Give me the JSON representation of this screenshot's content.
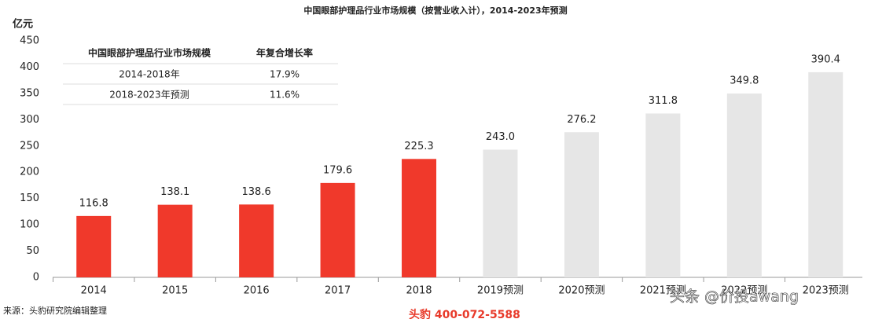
{
  "chart_data": {
    "type": "bar",
    "title": "中国眼部护理品行业市场规模（按营业收入计），2014-2023年预测",
    "y_label": "亿元",
    "categories": [
      "2014",
      "2015",
      "2016",
      "2017",
      "2018",
      "2019预测",
      "2020预测",
      "2021预测",
      "2022预测",
      "2023预测"
    ],
    "values": [
      116.8,
      138.1,
      138.6,
      179.6,
      225.3,
      243.0,
      276.2,
      311.8,
      349.8,
      390.4
    ],
    "value_labels": [
      "116.8",
      "138.1",
      "138.6",
      "179.6",
      "225.3",
      "243.0",
      "276.2",
      "311.8",
      "349.8",
      "390.4"
    ],
    "colors": [
      "#f0392b",
      "#f0392b",
      "#f0392b",
      "#f0392b",
      "#f0392b",
      "#e6e6e6",
      "#e6e6e6",
      "#e6e6e6",
      "#e6e6e6",
      "#e6e6e6"
    ],
    "ylim": [
      0,
      450
    ],
    "yticks": [
      0,
      50,
      100,
      150,
      200,
      250,
      300,
      350,
      400,
      450
    ],
    "grid": false,
    "inset_table": {
      "header": [
        "中国眼部护理品行业市场规模",
        "年复合增长率"
      ],
      "rows": [
        [
          "2014-2018年",
          "17.9%"
        ],
        [
          "2018-2023年预测",
          "11.6%"
        ]
      ]
    },
    "source": "来源：头豹研究院编辑整理",
    "logo_text": "头豹 400-072-5588",
    "watermark": "头条 @价投awang"
  }
}
